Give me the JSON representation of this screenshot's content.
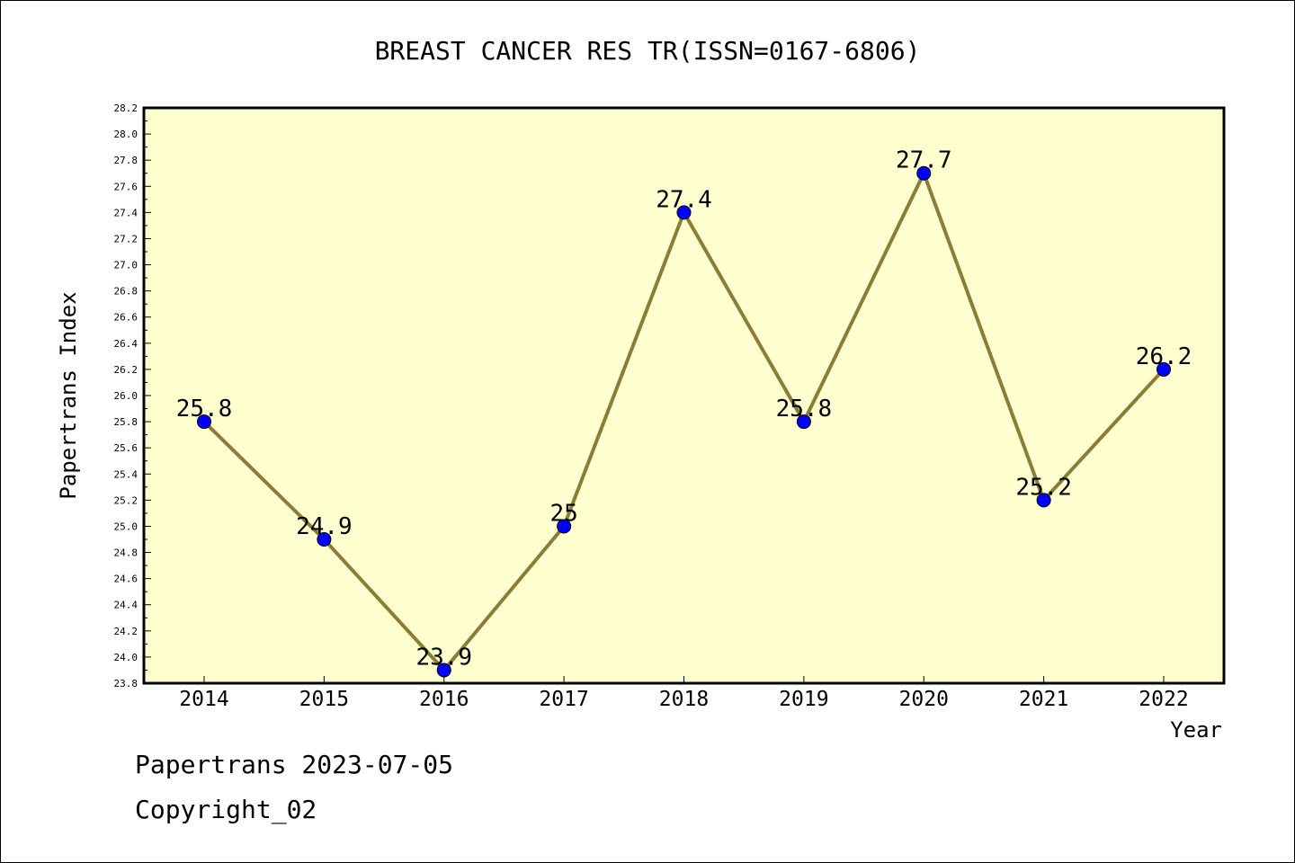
{
  "chart_data": {
    "type": "line",
    "title": "BREAST CANCER RES TR(ISSN=0167-6806)",
    "xlabel": "Year",
    "ylabel": "Papertrans Index",
    "categories": [
      "2014",
      "2015",
      "2016",
      "2017",
      "2018",
      "2019",
      "2020",
      "2021",
      "2022"
    ],
    "values": [
      25.8,
      24.9,
      23.9,
      25,
      27.4,
      25.8,
      27.7,
      25.2,
      26.2
    ],
    "data_labels": [
      "25.8",
      "24.9",
      "23.9",
      "25",
      "27.4",
      "25.8",
      "27.7",
      "25.2",
      "26.2"
    ],
    "ylim": [
      23.8,
      28.2
    ],
    "ytick_labels": [
      "23.8",
      "24.0",
      "24.2",
      "24.4",
      "24.6",
      "24.8",
      "25.0",
      "25.2",
      "25.4",
      "25.6",
      "25.8",
      "26.0",
      "26.2",
      "26.4",
      "26.6",
      "26.8",
      "27.0",
      "27.2",
      "27.4",
      "27.6",
      "27.8",
      "28.0",
      "28.2"
    ],
    "grid": false,
    "colors": {
      "plot_background": "#ffffd0",
      "line": "#8b7d35",
      "marker": "#0000ff"
    }
  },
  "footer": {
    "date_line": "Papertrans 2023-07-05",
    "copyright": "Copyright_02"
  }
}
